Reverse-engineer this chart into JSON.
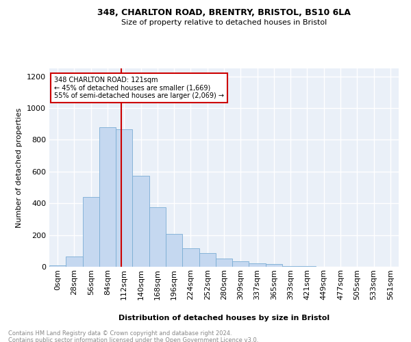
{
  "title1": "348, CHARLTON ROAD, BRENTRY, BRISTOL, BS10 6LA",
  "title2": "Size of property relative to detached houses in Bristol",
  "xlabel": "Distribution of detached houses by size in Bristol",
  "ylabel": "Number of detached properties",
  "bin_labels": [
    "0sqm",
    "28sqm",
    "56sqm",
    "84sqm",
    "112sqm",
    "140sqm",
    "168sqm",
    "196sqm",
    "224sqm",
    "252sqm",
    "280sqm",
    "309sqm",
    "337sqm",
    "365sqm",
    "393sqm",
    "421sqm",
    "449sqm",
    "477sqm",
    "505sqm",
    "533sqm",
    "561sqm"
  ],
  "bar_heights": [
    10,
    65,
    440,
    880,
    865,
    575,
    375,
    205,
    115,
    85,
    52,
    35,
    22,
    17,
    5,
    3,
    2,
    1,
    1,
    0,
    0
  ],
  "bar_color": "#c5d8f0",
  "bar_edge_color": "#7aadd4",
  "vline_color": "#cc0000",
  "annotation_text": "348 CHARLTON ROAD: 121sqm\n← 45% of detached houses are smaller (1,669)\n55% of semi-detached houses are larger (2,069) →",
  "annotation_box_color": "#ffffff",
  "annotation_box_edge_color": "#cc0000",
  "footer_text": "Contains HM Land Registry data © Crown copyright and database right 2024.\nContains public sector information licensed under the Open Government Licence v3.0.",
  "ylim": [
    0,
    1250
  ],
  "yticks": [
    0,
    200,
    400,
    600,
    800,
    1000,
    1200
  ],
  "plot_bg_color": "#eaf0f8",
  "grid_color": "#ffffff"
}
